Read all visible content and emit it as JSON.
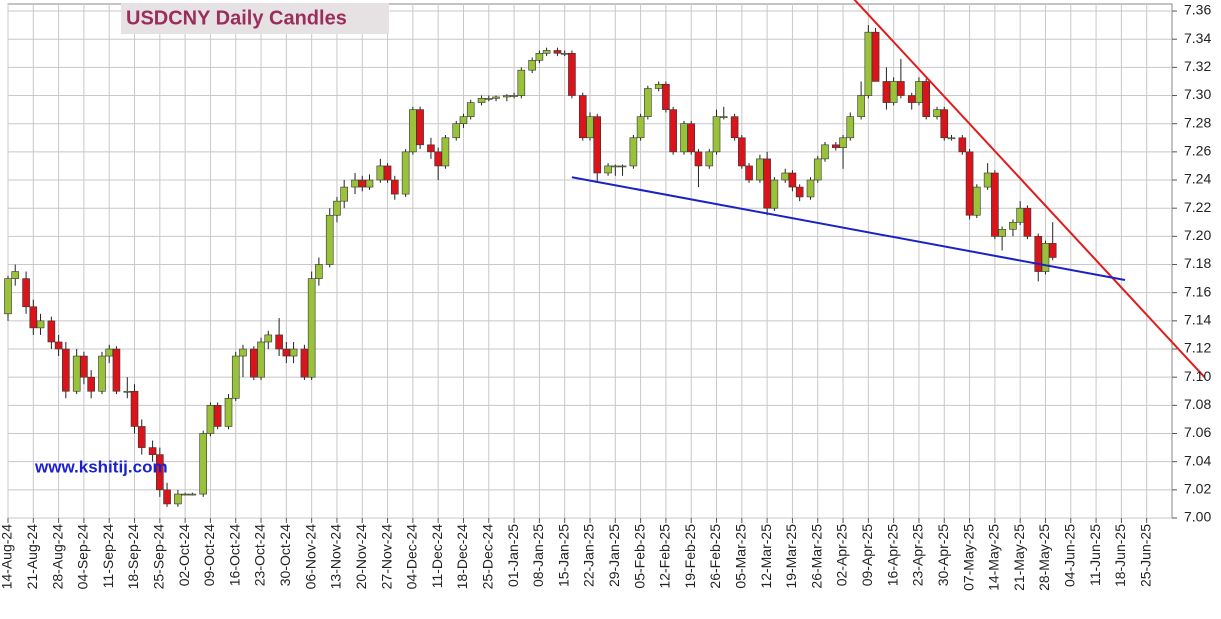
{
  "chart_data": {
    "type": "candlestick",
    "title": "USDCNY Daily Candles",
    "watermark": "www.kshitij.com",
    "up_color": "#99c13a",
    "down_color": "#d9141b",
    "grid": true,
    "x": [
      "2024-08-14",
      "2024-08-16",
      "2024-08-19",
      "2024-08-21",
      "2024-08-23",
      "2024-08-26",
      "2024-08-28",
      "2024-08-30",
      "2024-09-02",
      "2024-09-04",
      "2024-09-06",
      "2024-09-09",
      "2024-09-11",
      "2024-09-13",
      "2024-09-16",
      "2024-09-18",
      "2024-09-20",
      "2024-09-23",
      "2024-09-25",
      "2024-09-27",
      "2024-09-30",
      "2024-10-02",
      "2024-10-04",
      "2024-10-07",
      "2024-10-09",
      "2024-10-11",
      "2024-10-14",
      "2024-10-16",
      "2024-10-18",
      "2024-10-21",
      "2024-10-23",
      "2024-10-25",
      "2024-10-28",
      "2024-10-30",
      "2024-11-01",
      "2024-11-04",
      "2024-11-06",
      "2024-11-08",
      "2024-11-11",
      "2024-11-13",
      "2024-11-15",
      "2024-11-18",
      "2024-11-20",
      "2024-11-22",
      "2024-11-25",
      "2024-11-27",
      "2024-11-29",
      "2024-12-02",
      "2024-12-04",
      "2024-12-06",
      "2024-12-09",
      "2024-12-11",
      "2024-12-13",
      "2024-12-16",
      "2024-12-18",
      "2024-12-20",
      "2024-12-23",
      "2024-12-25",
      "2024-12-27",
      "2024-12-30",
      "2025-01-01",
      "2025-01-03",
      "2025-01-06",
      "2025-01-08",
      "2025-01-10",
      "2025-01-13",
      "2025-01-15",
      "2025-01-17",
      "2025-01-20",
      "2025-01-22",
      "2025-01-24",
      "2025-01-27",
      "2025-01-29",
      "2025-01-31",
      "2025-02-03",
      "2025-02-05",
      "2025-02-07",
      "2025-02-10",
      "2025-02-12",
      "2025-02-14",
      "2025-02-17",
      "2025-02-19",
      "2025-02-21",
      "2025-02-24",
      "2025-02-26",
      "2025-02-28",
      "2025-03-03",
      "2025-03-05",
      "2025-03-07",
      "2025-03-10",
      "2025-03-12",
      "2025-03-14",
      "2025-03-17",
      "2025-03-19",
      "2025-03-21",
      "2025-03-24",
      "2025-03-26",
      "2025-03-28",
      "2025-03-31",
      "2025-04-02",
      "2025-04-04",
      "2025-04-07",
      "2025-04-09",
      "2025-04-11",
      "2025-04-14",
      "2025-04-16",
      "2025-04-18",
      "2025-04-21",
      "2025-04-23",
      "2025-04-25",
      "2025-04-28",
      "2025-04-30",
      "2025-05-02",
      "2025-05-05",
      "2025-05-07",
      "2025-05-09",
      "2025-05-12",
      "2025-05-14",
      "2025-05-16",
      "2025-05-19",
      "2025-05-21",
      "2025-05-23",
      "2025-05-26",
      "2025-05-28",
      "2025-05-30"
    ],
    "ohlc": [
      [
        7.145,
        7.172,
        7.14,
        7.17
      ],
      [
        7.17,
        7.18,
        7.165,
        7.175
      ],
      [
        7.17,
        7.175,
        7.145,
        7.15
      ],
      [
        7.15,
        7.155,
        7.13,
        7.135
      ],
      [
        7.135,
        7.145,
        7.13,
        7.14
      ],
      [
        7.14,
        7.143,
        7.12,
        7.125
      ],
      [
        7.125,
        7.13,
        7.115,
        7.12
      ],
      [
        7.12,
        7.125,
        7.085,
        7.09
      ],
      [
        7.09,
        7.12,
        7.088,
        7.115
      ],
      [
        7.115,
        7.118,
        7.095,
        7.1
      ],
      [
        7.1,
        7.105,
        7.085,
        7.09
      ],
      [
        7.09,
        7.118,
        7.088,
        7.115
      ],
      [
        7.115,
        7.123,
        7.11,
        7.12
      ],
      [
        7.12,
        7.122,
        7.088,
        7.09
      ],
      [
        7.09,
        7.1,
        7.085,
        7.09
      ],
      [
        7.09,
        7.095,
        7.06,
        7.065
      ],
      [
        7.065,
        7.07,
        7.045,
        7.05
      ],
      [
        7.05,
        7.055,
        7.04,
        7.045
      ],
      [
        7.045,
        7.05,
        7.015,
        7.02
      ],
      [
        7.02,
        7.025,
        7.008,
        7.01
      ],
      [
        7.01,
        7.02,
        7.008,
        7.017
      ],
      [
        7.017,
        7.018,
        7.016,
        7.017
      ],
      [
        7.017,
        7.018,
        7.016,
        7.017
      ],
      [
        7.017,
        7.062,
        7.015,
        7.06
      ],
      [
        7.06,
        7.082,
        7.058,
        7.08
      ],
      [
        7.08,
        7.082,
        7.063,
        7.065
      ],
      [
        7.065,
        7.088,
        7.063,
        7.085
      ],
      [
        7.085,
        7.118,
        7.083,
        7.115
      ],
      [
        7.115,
        7.123,
        7.1,
        7.12
      ],
      [
        7.12,
        7.122,
        7.098,
        7.1
      ],
      [
        7.1,
        7.128,
        7.098,
        7.125
      ],
      [
        7.125,
        7.133,
        7.12,
        7.13
      ],
      [
        7.13,
        7.142,
        7.115,
        7.12
      ],
      [
        7.12,
        7.125,
        7.11,
        7.115
      ],
      [
        7.115,
        7.125,
        7.11,
        7.12
      ],
      [
        7.12,
        7.123,
        7.098,
        7.1
      ],
      [
        7.1,
        7.175,
        7.098,
        7.17
      ],
      [
        7.17,
        7.185,
        7.165,
        7.18
      ],
      [
        7.18,
        7.22,
        7.178,
        7.215
      ],
      [
        7.215,
        7.228,
        7.21,
        7.225
      ],
      [
        7.225,
        7.24,
        7.22,
        7.235
      ],
      [
        7.235,
        7.245,
        7.23,
        7.24
      ],
      [
        7.24,
        7.243,
        7.232,
        7.235
      ],
      [
        7.235,
        7.244,
        7.233,
        7.24
      ],
      [
        7.24,
        7.255,
        7.238,
        7.25
      ],
      [
        7.25,
        7.252,
        7.238,
        7.24
      ],
      [
        7.24,
        7.243,
        7.226,
        7.23
      ],
      [
        7.23,
        7.262,
        7.228,
        7.26
      ],
      [
        7.26,
        7.292,
        7.258,
        7.29
      ],
      [
        7.29,
        7.292,
        7.262,
        7.265
      ],
      [
        7.265,
        7.27,
        7.255,
        7.26
      ],
      [
        7.26,
        7.263,
        7.24,
        7.25
      ],
      [
        7.25,
        7.272,
        7.248,
        7.27
      ],
      [
        7.27,
        7.282,
        7.268,
        7.28
      ],
      [
        7.28,
        7.287,
        7.277,
        7.285
      ],
      [
        7.285,
        7.297,
        7.283,
        7.295
      ],
      [
        7.295,
        7.3,
        7.293,
        7.298
      ],
      [
        7.298,
        7.3,
        7.296,
        7.298
      ],
      [
        7.298,
        7.3,
        7.296,
        7.299
      ],
      [
        7.299,
        7.301,
        7.296,
        7.3
      ],
      [
        7.3,
        7.302,
        7.298,
        7.3
      ],
      [
        7.3,
        7.32,
        7.298,
        7.318
      ],
      [
        7.318,
        7.327,
        7.316,
        7.325
      ],
      [
        7.325,
        7.332,
        7.323,
        7.33
      ],
      [
        7.33,
        7.334,
        7.328,
        7.332
      ],
      [
        7.332,
        7.334,
        7.328,
        7.33
      ],
      [
        7.33,
        7.332,
        7.328,
        7.33
      ],
      [
        7.33,
        7.332,
        7.298,
        7.3
      ],
      [
        7.3,
        7.302,
        7.268,
        7.27
      ],
      [
        7.27,
        7.288,
        7.268,
        7.285
      ],
      [
        7.285,
        7.287,
        7.238,
        7.245
      ],
      [
        7.245,
        7.252,
        7.243,
        7.25
      ],
      [
        7.25,
        7.251,
        7.243,
        7.25
      ],
      [
        7.25,
        7.251,
        7.243,
        7.25
      ],
      [
        7.25,
        7.272,
        7.248,
        7.27
      ],
      [
        7.27,
        7.287,
        7.268,
        7.285
      ],
      [
        7.285,
        7.307,
        7.283,
        7.305
      ],
      [
        7.305,
        7.31,
        7.303,
        7.308
      ],
      [
        7.308,
        7.31,
        7.288,
        7.29
      ],
      [
        7.29,
        7.292,
        7.258,
        7.26
      ],
      [
        7.26,
        7.282,
        7.258,
        7.28
      ],
      [
        7.28,
        7.282,
        7.258,
        7.26
      ],
      [
        7.26,
        7.262,
        7.235,
        7.25
      ],
      [
        7.25,
        7.262,
        7.248,
        7.26
      ],
      [
        7.26,
        7.29,
        7.258,
        7.285
      ],
      [
        7.285,
        7.292,
        7.283,
        7.285
      ],
      [
        7.285,
        7.287,
        7.268,
        7.27
      ],
      [
        7.27,
        7.272,
        7.248,
        7.25
      ],
      [
        7.25,
        7.252,
        7.238,
        7.24
      ],
      [
        7.24,
        7.258,
        7.238,
        7.255
      ],
      [
        7.255,
        7.26,
        7.215,
        7.22
      ],
      [
        7.22,
        7.242,
        7.218,
        7.24
      ],
      [
        7.24,
        7.248,
        7.238,
        7.245
      ],
      [
        7.245,
        7.247,
        7.232,
        7.235
      ],
      [
        7.235,
        7.237,
        7.225,
        7.228
      ],
      [
        7.228,
        7.242,
        7.226,
        7.24
      ],
      [
        7.24,
        7.257,
        7.238,
        7.255
      ],
      [
        7.255,
        7.267,
        7.253,
        7.265
      ],
      [
        7.265,
        7.267,
        7.261,
        7.263
      ],
      [
        7.263,
        7.272,
        7.248,
        7.27
      ],
      [
        7.27,
        7.288,
        7.268,
        7.285
      ],
      [
        7.285,
        7.31,
        7.283,
        7.3
      ],
      [
        7.3,
        7.35,
        7.298,
        7.345
      ],
      [
        7.345,
        7.348,
        7.31,
        7.31
      ],
      [
        7.31,
        7.32,
        7.29,
        7.295
      ],
      [
        7.295,
        7.313,
        7.293,
        7.31
      ],
      [
        7.31,
        7.326,
        7.298,
        7.3
      ],
      [
        7.3,
        7.302,
        7.29,
        7.295
      ],
      [
        7.295,
        7.313,
        7.293,
        7.31
      ],
      [
        7.31,
        7.312,
        7.283,
        7.285
      ],
      [
        7.285,
        7.292,
        7.283,
        7.29
      ],
      [
        7.29,
        7.292,
        7.268,
        7.27
      ],
      [
        7.27,
        7.272,
        7.268,
        7.27
      ],
      [
        7.27,
        7.272,
        7.258,
        7.26
      ],
      [
        7.26,
        7.262,
        7.212,
        7.215
      ],
      [
        7.215,
        7.237,
        7.213,
        7.235
      ],
      [
        7.235,
        7.252,
        7.233,
        7.245
      ],
      [
        7.245,
        7.247,
        7.198,
        7.2
      ],
      [
        7.2,
        7.207,
        7.19,
        7.205
      ],
      [
        7.205,
        7.212,
        7.2,
        7.21
      ],
      [
        7.21,
        7.225,
        7.208,
        7.22
      ],
      [
        7.22,
        7.222,
        7.198,
        7.2
      ],
      [
        7.2,
        7.202,
        7.168,
        7.175
      ],
      [
        7.175,
        7.197,
        7.173,
        7.195
      ],
      [
        7.195,
        7.21,
        7.183,
        7.185
      ]
    ],
    "trendlines": [
      {
        "color": "#e01b1b",
        "x": [
          "2025-04-05",
          "2025-07-11"
        ],
        "values": [
          7.3685,
          7.1
        ]
      },
      {
        "color": "#1b22c4",
        "x": [
          "2025-01-17",
          "2025-06-19"
        ],
        "values": [
          7.242,
          7.169
        ]
      }
    ],
    "xlim": [
      "2024-08-14",
      "2025-07-02"
    ],
    "xticks": [
      {
        "value": "2024-08-14",
        "label": "14-Aug-24"
      },
      {
        "value": "2024-08-21",
        "label": "21-Aug-24"
      },
      {
        "value": "2024-08-28",
        "label": "28-Aug-24"
      },
      {
        "value": "2024-09-04",
        "label": "04-Sep-24"
      },
      {
        "value": "2024-09-11",
        "label": "11-Sep-24"
      },
      {
        "value": "2024-09-18",
        "label": "18-Sep-24"
      },
      {
        "value": "2024-09-25",
        "label": "25-Sep-24"
      },
      {
        "value": "2024-10-02",
        "label": "02-Oct-24"
      },
      {
        "value": "2024-10-09",
        "label": "09-Oct-24"
      },
      {
        "value": "2024-10-16",
        "label": "16-Oct-24"
      },
      {
        "value": "2024-10-23",
        "label": "23-Oct-24"
      },
      {
        "value": "2024-10-30",
        "label": "30-Oct-24"
      },
      {
        "value": "2024-11-06",
        "label": "06-Nov-24"
      },
      {
        "value": "2024-11-13",
        "label": "13-Nov-24"
      },
      {
        "value": "2024-11-20",
        "label": "20-Nov-24"
      },
      {
        "value": "2024-11-27",
        "label": "27-Nov-24"
      },
      {
        "value": "2024-12-04",
        "label": "04-Dec-24"
      },
      {
        "value": "2024-12-11",
        "label": "11-Dec-24"
      },
      {
        "value": "2024-12-18",
        "label": "18-Dec-24"
      },
      {
        "value": "2024-12-25",
        "label": "25-Dec-24"
      },
      {
        "value": "2025-01-01",
        "label": "01-Jan-25"
      },
      {
        "value": "2025-01-08",
        "label": "08-Jan-25"
      },
      {
        "value": "2025-01-15",
        "label": "15-Jan-25"
      },
      {
        "value": "2025-01-22",
        "label": "22-Jan-25"
      },
      {
        "value": "2025-01-29",
        "label": "29-Jan-25"
      },
      {
        "value": "2025-02-05",
        "label": "05-Feb-25"
      },
      {
        "value": "2025-02-12",
        "label": "12-Feb-25"
      },
      {
        "value": "2025-02-19",
        "label": "19-Feb-25"
      },
      {
        "value": "2025-02-26",
        "label": "26-Feb-25"
      },
      {
        "value": "2025-03-05",
        "label": "05-Mar-25"
      },
      {
        "value": "2025-03-12",
        "label": "12-Mar-25"
      },
      {
        "value": "2025-03-19",
        "label": "19-Mar-25"
      },
      {
        "value": "2025-03-26",
        "label": "26-Mar-25"
      },
      {
        "value": "2025-04-02",
        "label": "02-Apr-25"
      },
      {
        "value": "2025-04-09",
        "label": "09-Apr-25"
      },
      {
        "value": "2025-04-16",
        "label": "16-Apr-25"
      },
      {
        "value": "2025-04-23",
        "label": "23-Apr-25"
      },
      {
        "value": "2025-04-30",
        "label": "30-Apr-25"
      },
      {
        "value": "2025-05-07",
        "label": "07-May-25"
      },
      {
        "value": "2025-05-14",
        "label": "14-May-25"
      },
      {
        "value": "2025-05-21",
        "label": "21-May-25"
      },
      {
        "value": "2025-05-28",
        "label": "28-May-25"
      },
      {
        "value": "2025-06-04",
        "label": "04-Jun-25"
      },
      {
        "value": "2025-06-11",
        "label": "11-Jun-25"
      },
      {
        "value": "2025-06-18",
        "label": "18-Jun-25"
      },
      {
        "value": "2025-06-25",
        "label": "25-Jun-25"
      }
    ],
    "ylim": [
      7.0,
      7.365
    ],
    "yticks": [
      {
        "value": 7.0,
        "label": "7.00"
      },
      7.02,
      7.04,
      7.06,
      7.08,
      {
        "value": 7.1,
        "label": "7.10"
      },
      7.12,
      7.14,
      7.16,
      7.18,
      {
        "value": 7.2,
        "label": "7.20"
      },
      7.22,
      7.24,
      7.26,
      7.28,
      {
        "value": 7.3,
        "label": "7.30"
      },
      7.32,
      7.34,
      7.36
    ]
  }
}
